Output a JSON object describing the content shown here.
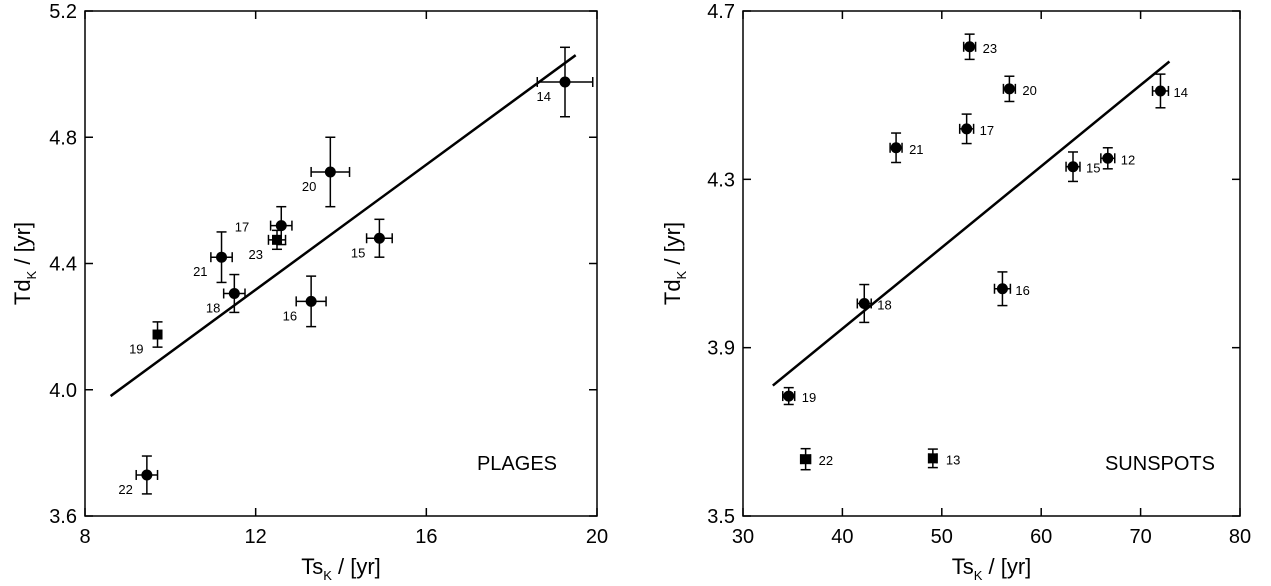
{
  "chart_data": [
    {
      "type": "scatter",
      "panel_label": "PLAGES",
      "xlim": [
        8,
        20
      ],
      "ylim": [
        3.6,
        5.2
      ],
      "xticks": [
        8,
        12,
        16,
        20
      ],
      "yticks": [
        3.6,
        4.0,
        4.4,
        4.8,
        5.2
      ],
      "xtick_labels": [
        "8",
        "12",
        "16",
        "20"
      ],
      "ytick_labels": [
        "3.6",
        "4.0",
        "4.4",
        "4.8",
        "5.2"
      ],
      "xlabel": {
        "main": "Ts",
        "sub": "K",
        "rest": " / [yr]"
      },
      "ylabel": {
        "main": "Td",
        "sub": "K",
        "rest": " / [yr]"
      },
      "points": [
        {
          "label": "22",
          "x": 9.45,
          "y": 3.73,
          "xerr": 0.25,
          "yerr": 0.06,
          "marker": "circle",
          "label_pos": "left"
        },
        {
          "label": "19",
          "x": 9.7,
          "y": 4.175,
          "xerr": 0.0,
          "yerr": 0.04,
          "marker": "square",
          "label_pos": "left"
        },
        {
          "label": "21",
          "x": 11.2,
          "y": 4.42,
          "xerr": 0.25,
          "yerr": 0.08,
          "marker": "circle",
          "label_pos": "left"
        },
        {
          "label": "18",
          "x": 11.5,
          "y": 4.305,
          "xerr": 0.25,
          "yerr": 0.06,
          "marker": "circle",
          "label_pos": "left"
        },
        {
          "label": "23",
          "x": 12.5,
          "y": 4.475,
          "xerr": 0.2,
          "yerr": 0.03,
          "marker": "square",
          "label_pos": "left"
        },
        {
          "label": "17",
          "x": 12.6,
          "y": 4.52,
          "xerr": 0.25,
          "yerr": 0.06,
          "marker": "circle",
          "label_pos": "left-far"
        },
        {
          "label": "16",
          "x": 13.3,
          "y": 4.28,
          "xerr": 0.35,
          "yerr": 0.08,
          "marker": "circle",
          "label_pos": "left-below"
        },
        {
          "label": "20",
          "x": 13.75,
          "y": 4.69,
          "xerr": 0.45,
          "yerr": 0.11,
          "marker": "circle",
          "label_pos": "left-below"
        },
        {
          "label": "15",
          "x": 14.9,
          "y": 4.48,
          "xerr": 0.3,
          "yerr": 0.06,
          "marker": "circle",
          "label_pos": "left-below"
        },
        {
          "label": "14",
          "x": 19.25,
          "y": 4.975,
          "xerr": 0.65,
          "yerr": 0.11,
          "marker": "circle",
          "label_pos": "left-below"
        }
      ],
      "fit_line": {
        "x": [
          8.6,
          19.5
        ],
        "y": [
          3.98,
          5.06
        ]
      }
    },
    {
      "type": "scatter",
      "panel_label": "SUNSPOTS",
      "xlim": [
        30,
        80
      ],
      "ylim": [
        3.5,
        4.7
      ],
      "xticks": [
        30,
        40,
        50,
        60,
        70,
        80
      ],
      "yticks": [
        3.5,
        3.9,
        4.3,
        4.7
      ],
      "xtick_labels": [
        "30",
        "40",
        "50",
        "60",
        "70",
        "80"
      ],
      "ytick_labels": [
        "3.5",
        "3.9",
        "4.3",
        "4.7"
      ],
      "xlabel": {
        "main": "Ts",
        "sub": "K",
        "rest": " / [yr]"
      },
      "ylabel": {
        "main": "Td",
        "sub": "K",
        "rest": " / [yr]"
      },
      "points": [
        {
          "label": "19",
          "x": 34.6,
          "y": 3.785,
          "xerr": 0.6,
          "yerr": 0.02,
          "marker": "circle",
          "label_pos": "right"
        },
        {
          "label": "22",
          "x": 36.3,
          "y": 3.635,
          "xerr": 0.5,
          "yerr": 0.025,
          "marker": "square",
          "label_pos": "right"
        },
        {
          "label": "18",
          "x": 42.2,
          "y": 4.005,
          "xerr": 0.7,
          "yerr": 0.045,
          "marker": "circle",
          "label_pos": "right"
        },
        {
          "label": "21",
          "x": 45.4,
          "y": 4.375,
          "xerr": 0.6,
          "yerr": 0.035,
          "marker": "circle",
          "label_pos": "right"
        },
        {
          "label": "13",
          "x": 49.1,
          "y": 3.637,
          "xerr": 0.4,
          "yerr": 0.022,
          "marker": "square",
          "label_pos": "right"
        },
        {
          "label": "17",
          "x": 52.5,
          "y": 4.42,
          "xerr": 0.7,
          "yerr": 0.035,
          "marker": "circle",
          "label_pos": "right"
        },
        {
          "label": "23",
          "x": 52.8,
          "y": 4.615,
          "xerr": 0.6,
          "yerr": 0.03,
          "marker": "circle",
          "label_pos": "right"
        },
        {
          "label": "16",
          "x": 56.1,
          "y": 4.04,
          "xerr": 0.8,
          "yerr": 0.04,
          "marker": "circle",
          "label_pos": "right"
        },
        {
          "label": "20",
          "x": 56.8,
          "y": 4.515,
          "xerr": 0.6,
          "yerr": 0.03,
          "marker": "circle",
          "label_pos": "right"
        },
        {
          "label": "15",
          "x": 63.2,
          "y": 4.33,
          "xerr": 0.7,
          "yerr": 0.035,
          "marker": "circle",
          "label_pos": "right"
        },
        {
          "label": "12",
          "x": 66.7,
          "y": 4.35,
          "xerr": 0.7,
          "yerr": 0.025,
          "marker": "circle",
          "label_pos": "right"
        },
        {
          "label": "14",
          "x": 72.0,
          "y": 4.51,
          "xerr": 0.8,
          "yerr": 0.04,
          "marker": "circle",
          "label_pos": "right"
        }
      ],
      "fit_line": {
        "x": [
          33.0,
          72.9
        ],
        "y": [
          3.81,
          4.58
        ]
      }
    }
  ]
}
